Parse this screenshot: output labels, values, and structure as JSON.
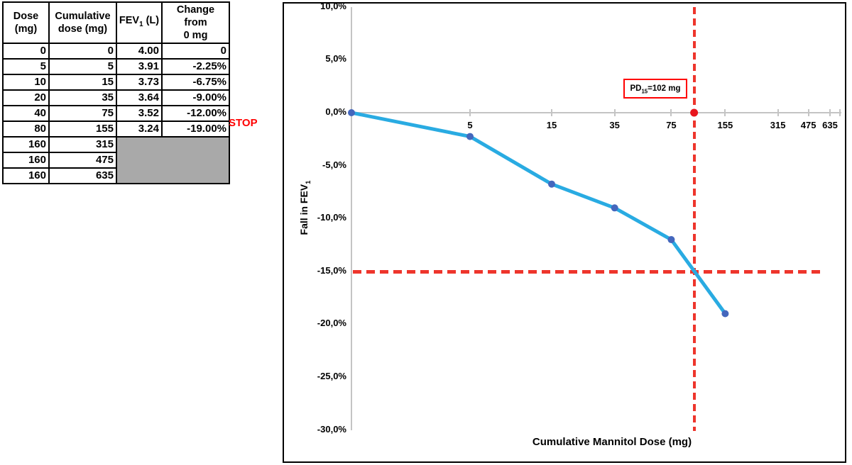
{
  "table": {
    "headers": [
      {
        "line1": "Dose",
        "line2": "(mg)"
      },
      {
        "line1": "Cumulative",
        "line2": "dose (mg)"
      },
      {
        "pre": "FEV",
        "sub": "1",
        "post": " (L)"
      },
      {
        "line1": "Change from",
        "line2": "0 mg"
      }
    ],
    "rows": [
      {
        "dose": "0",
        "cum": "0",
        "fev": "4.00",
        "change": "0"
      },
      {
        "dose": "5",
        "cum": "5",
        "fev": "3.91",
        "change": "-2.25%"
      },
      {
        "dose": "10",
        "cum": "15",
        "fev": "3.73",
        "change": "-6.75%"
      },
      {
        "dose": "20",
        "cum": "35",
        "fev": "3.64",
        "change": "-9.00%"
      },
      {
        "dose": "40",
        "cum": "75",
        "fev": "3.52",
        "change": "-12.00%"
      },
      {
        "dose": "80",
        "cum": "155",
        "fev": "3.24",
        "change": "-19.00%"
      },
      {
        "dose": "160",
        "cum": "315"
      },
      {
        "dose": "160",
        "cum": "475"
      },
      {
        "dose": "160",
        "cum": "635"
      }
    ],
    "stop_label": "STOP"
  },
  "chart_data": {
    "type": "line",
    "x_scale": "log",
    "xlabel": "Cumulative Mannitol Dose (mg)",
    "ylabel": {
      "pre": "Fall in FEV",
      "sub": "1"
    },
    "series": [
      {
        "name": "Fall in FEV1 (%)",
        "x": [
          0,
          5,
          15,
          35,
          75,
          155
        ],
        "y_pct": [
          0,
          -2.25,
          -6.75,
          -9,
          -12,
          -19
        ]
      }
    ],
    "x_tick_values": [
      5,
      15,
      35,
      75,
      155,
      315,
      475,
      635
    ],
    "x_tick_labels": [
      "5",
      "15",
      "35",
      "75",
      "155",
      "315",
      "475",
      "635"
    ],
    "y_tick_values": [
      10,
      5,
      0,
      -5,
      -10,
      -15,
      -20,
      -25,
      -30
    ],
    "y_tick_labels": [
      "10,0%",
      "5,0%",
      "0,0%",
      "-5,0%",
      "-10,0%",
      "-15,0%",
      "-20,0%",
      "-25,0%",
      "-30,0%"
    ],
    "ylim": [
      -30,
      10
    ],
    "grid": false,
    "legend": "none",
    "threshold_pct": -15,
    "pd15_dose_mg": 102,
    "annotation": {
      "pre": "PD",
      "sub": "15",
      "post": "=102 mg"
    },
    "colors": {
      "line": "#29abe2",
      "marker": "#4467bd",
      "axis": "#c4c4c4",
      "dashed": "#ee352c",
      "dot": "#e8151d",
      "annotation_border": "#ff0000",
      "stop_red": "#ff0000",
      "table_gray": "#a9a9a9"
    }
  }
}
